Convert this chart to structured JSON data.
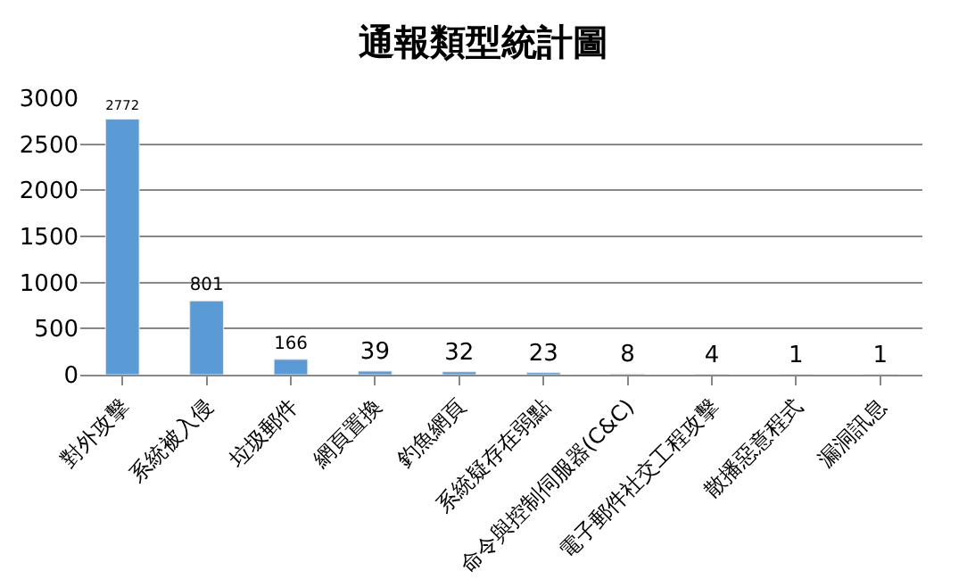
{
  "chart_data": {
    "type": "bar",
    "title": "通報類型統計圖",
    "categories": [
      "對外攻擊",
      "系統被入侵",
      "垃圾郵件",
      "網頁置換",
      "釣魚網頁",
      "系統疑存在弱點",
      "命令與控制伺服器(C&C)",
      "電子郵件社交工程攻擊",
      "散播惡意程式",
      "漏洞訊息"
    ],
    "values": [
      2772,
      801,
      166,
      39,
      32,
      23,
      8,
      4,
      1,
      1
    ],
    "color": "#5b9bd5",
    "data_labels": true,
    "ylim": [
      0,
      3000
    ],
    "yticks": [
      0,
      500,
      1000,
      1500,
      2000,
      2500,
      3000
    ],
    "grid": "y",
    "legend": false
  }
}
